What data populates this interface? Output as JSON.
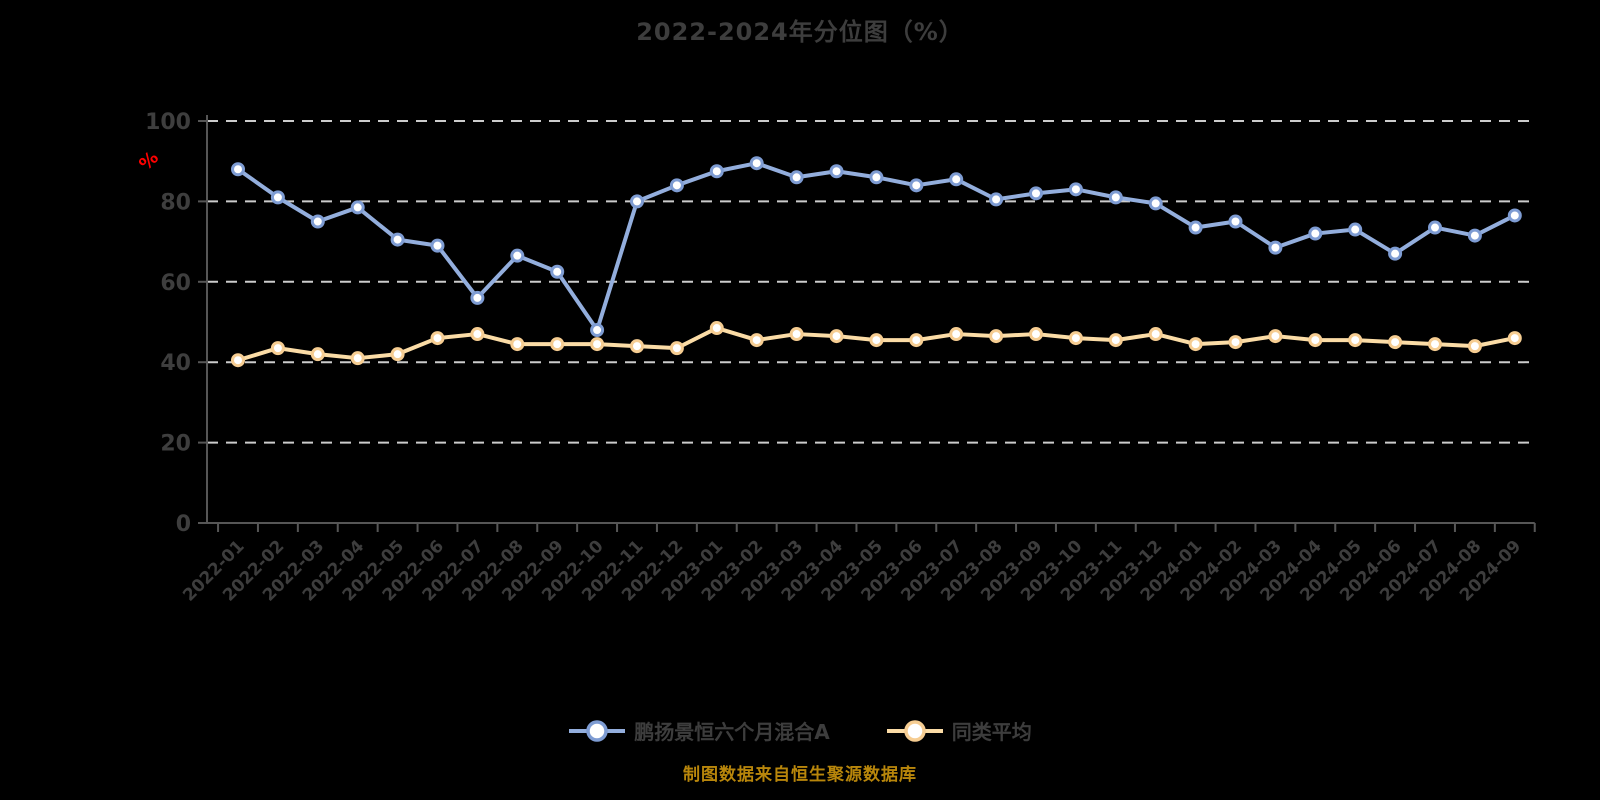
{
  "title": "2022-2024年分位图（%）",
  "caption": "制图数据来自恒生聚源数据库",
  "colors": {
    "background": "#000000",
    "title_text": "#3d3d3d",
    "axis_line": "#565656",
    "grid_line": "#cccccc",
    "tick_label": "#3d3d3d",
    "unit_label": "#ff0000",
    "caption_text": "#b8860b"
  },
  "chart_data": {
    "type": "line",
    "title": "2022-2024年分位图（%）",
    "ylabel": "%",
    "xlabel": "",
    "ylim": [
      0,
      100
    ],
    "yticks": [
      0,
      20,
      40,
      60,
      80,
      100
    ],
    "grid": "horizontal-dashed",
    "legend_position": "bottom",
    "marker": "circle-white-fill",
    "categories": [
      "2022-01",
      "2022-02",
      "2022-03",
      "2022-04",
      "2022-05",
      "2022-06",
      "2022-07",
      "2022-08",
      "2022-09",
      "2022-10",
      "2022-11",
      "2022-12",
      "2023-01",
      "2023-02",
      "2023-03",
      "2023-04",
      "2023-05",
      "2023-06",
      "2023-07",
      "2023-08",
      "2023-09",
      "2023-10",
      "2023-11",
      "2023-12",
      "2024-01",
      "2024-02",
      "2024-03",
      "2024-04",
      "2024-05",
      "2024-06",
      "2024-07",
      "2024-08",
      "2024-09"
    ],
    "series": [
      {
        "name": "鹏扬景恒六个月混合A",
        "line_color": "#93aedd",
        "marker_color": "#7e9cd3",
        "values": [
          88,
          81,
          75,
          78.5,
          70.5,
          69,
          56,
          66.5,
          62.5,
          48,
          80,
          84,
          87.5,
          89.5,
          86,
          87.5,
          86,
          84,
          85.5,
          80.5,
          82,
          83,
          81,
          79.5,
          73.5,
          75,
          68.5,
          72,
          73,
          67,
          73.5,
          71.5,
          76.5
        ]
      },
      {
        "name": "同类平均",
        "line_color": "#fbdca6",
        "marker_color": "#f6cd92",
        "values": [
          40.5,
          43.5,
          42,
          41,
          42,
          46,
          47,
          44.5,
          44.5,
          44.5,
          44,
          43.5,
          48.5,
          45.5,
          47,
          46.5,
          45.5,
          45.5,
          47,
          46.5,
          47,
          46,
          45.5,
          47,
          44.5,
          45,
          46.5,
          45.5,
          45.5,
          45,
          44.5,
          44,
          46
        ]
      }
    ]
  }
}
